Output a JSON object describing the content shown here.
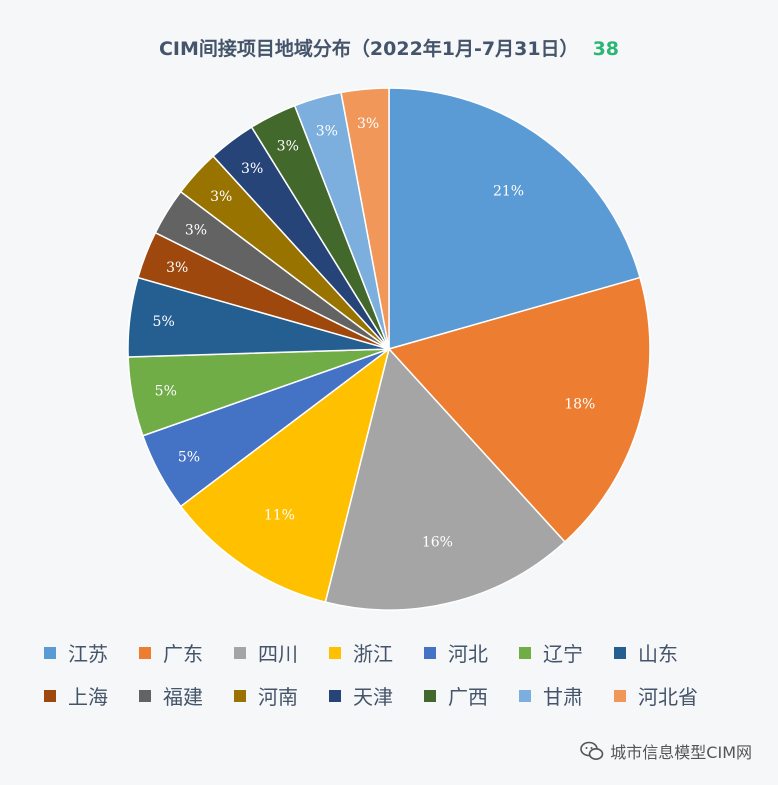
{
  "header": {
    "title": "CIM间接项目地域分布（2022年1月-7月31日）",
    "count": "38"
  },
  "watermark": {
    "text": "城市信息模型CIM网",
    "icon": "wechat-icon"
  },
  "chart_data": {
    "type": "pie",
    "title": "CIM间接项目地域分布（2022年1月-7月31日）",
    "legend_position": "bottom",
    "slices": [
      {
        "name": "江苏",
        "value": 21,
        "label": "21%",
        "color": "#5b9bd5"
      },
      {
        "name": "广东",
        "value": 18,
        "label": "18%",
        "color": "#ed7d31"
      },
      {
        "name": "四川",
        "value": 16,
        "label": "16%",
        "color": "#a5a5a5"
      },
      {
        "name": "浙江",
        "value": 11,
        "label": "11%",
        "color": "#ffc000"
      },
      {
        "name": "河北",
        "value": 5,
        "label": "5%",
        "color": "#4472c4"
      },
      {
        "name": "辽宁",
        "value": 5,
        "label": "5%",
        "color": "#70ad47"
      },
      {
        "name": "山东",
        "value": 5,
        "label": "5%",
        "color": "#255e91"
      },
      {
        "name": "上海",
        "value": 3,
        "label": "3%",
        "color": "#9e480e"
      },
      {
        "name": "福建",
        "value": 3,
        "label": "3%",
        "color": "#636363"
      },
      {
        "name": "河南",
        "value": 3,
        "label": "3%",
        "color": "#997300"
      },
      {
        "name": "天津",
        "value": 3,
        "label": "3%",
        "color": "#264478"
      },
      {
        "name": "广西",
        "value": 3,
        "label": "3%",
        "color": "#43682b"
      },
      {
        "name": "甘肃",
        "value": 3,
        "label": "3%",
        "color": "#7cafdd"
      },
      {
        "name": "河北省",
        "value": 3,
        "label": "3%",
        "color": "#f1975a"
      }
    ]
  }
}
